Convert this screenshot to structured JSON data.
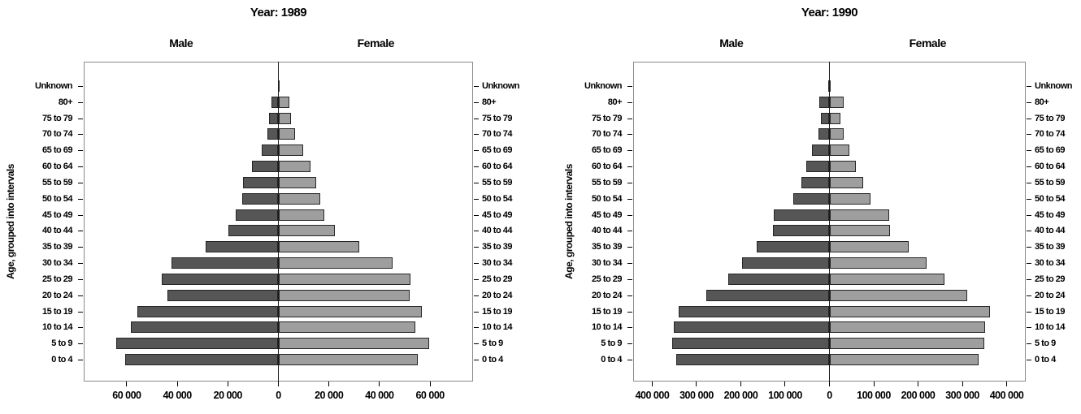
{
  "colors": {
    "male_bar": "#565656",
    "female_bar": "#9e9e9e",
    "bar_border": "#262626",
    "plot_frame": "#8a8a8a",
    "axis_line": "#000000",
    "text": "#000000",
    "background": "#ffffff"
  },
  "chart_data": [
    {
      "type": "bar",
      "subtype": "population-pyramid",
      "title": "Year: 1989",
      "group_headers": [
        "Male",
        "Female"
      ],
      "ylabel": "Age, grouped into intervals",
      "categories": [
        "Unknown",
        "80+",
        "75 to 79",
        "70 to 74",
        "65 to 69",
        "60 to 64",
        "55 to 59",
        "50 to 54",
        "45 to 49",
        "40 to 44",
        "35 to 39",
        "30 to 34",
        "25 to 29",
        "20 to 24",
        "15 to 19",
        "10 to 14",
        "5 to 9",
        "0 to 4"
      ],
      "series": [
        {
          "name": "Male",
          "side": "left",
          "values": [
            150,
            2800,
            3600,
            4400,
            6500,
            10600,
            14000,
            14300,
            16800,
            19700,
            28700,
            42200,
            46200,
            43800,
            55900,
            58400,
            64100,
            60500
          ]
        },
        {
          "name": "Female",
          "side": "right",
          "values": [
            150,
            4200,
            5000,
            6500,
            9700,
            12600,
            14800,
            16400,
            18300,
            22500,
            32100,
            45300,
            52200,
            51800,
            56800,
            54200,
            59500,
            55000
          ]
        }
      ],
      "x_tick_labels": [
        "60 000",
        "40 000",
        "20 000",
        "0",
        "20 000",
        "40 000",
        "60 000"
      ],
      "x_tick_values": [
        -60000,
        -40000,
        -20000,
        0,
        20000,
        40000,
        60000
      ],
      "xlim": [
        -77000,
        77000
      ],
      "grid": false,
      "legend": "none"
    },
    {
      "type": "bar",
      "subtype": "population-pyramid",
      "title": "Year: 1990",
      "group_headers": [
        "Male",
        "Female"
      ],
      "ylabel": "Age, grouped into intervals",
      "categories": [
        "Unknown",
        "80+",
        "75 to 79",
        "70 to 74",
        "65 to 69",
        "60 to 64",
        "55 to 59",
        "50 to 54",
        "45 to 49",
        "40 to 44",
        "35 to 39",
        "30 to 34",
        "25 to 29",
        "20 to 24",
        "15 to 19",
        "10 to 14",
        "5 to 9",
        "0 to 4"
      ],
      "series": [
        {
          "name": "Male",
          "side": "left",
          "values": [
            2500,
            23000,
            19000,
            25500,
            40000,
            53000,
            63000,
            81500,
            125000,
            128000,
            165000,
            196500,
            229000,
            278000,
            340000,
            351000,
            355000,
            346500
          ]
        },
        {
          "name": "Female",
          "side": "right",
          "values": [
            2500,
            31500,
            24000,
            33000,
            44500,
            60500,
            75500,
            92000,
            134500,
            137500,
            179000,
            218500,
            259500,
            311500,
            361500,
            351000,
            349500,
            337500
          ]
        }
      ],
      "x_tick_labels": [
        "400 000",
        "300 000",
        "200 000",
        "100 000",
        "0",
        "100 000",
        "200 000",
        "300 000",
        "400 000"
      ],
      "x_tick_values": [
        -400000,
        -300000,
        -200000,
        -100000,
        0,
        100000,
        200000,
        300000,
        400000
      ],
      "xlim": [
        -443000,
        443000
      ],
      "grid": false,
      "legend": "none"
    }
  ]
}
